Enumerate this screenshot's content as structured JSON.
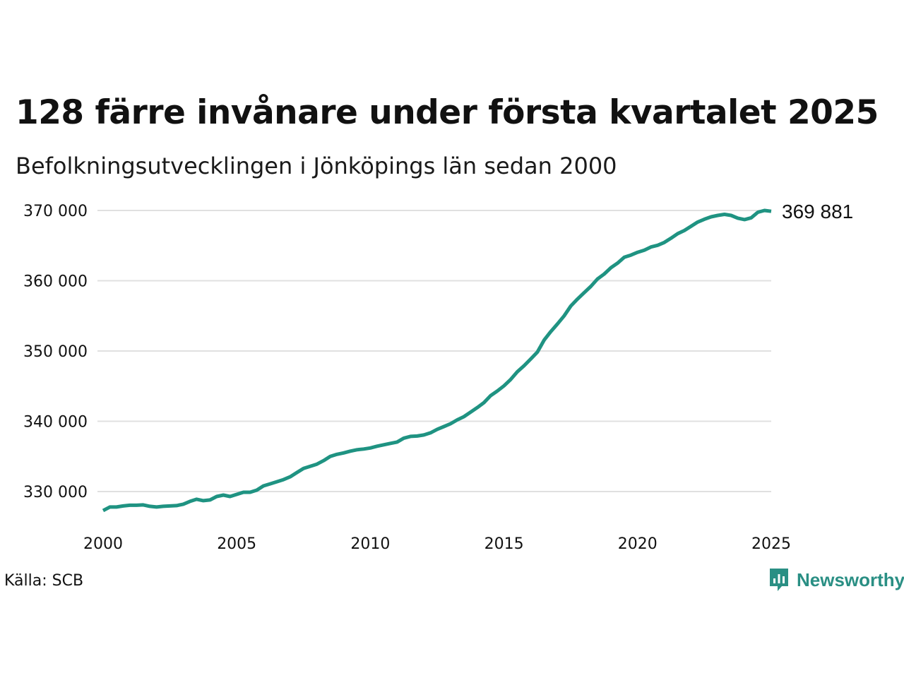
{
  "title": "128 färre invånare under första kvartalet 2025",
  "subtitle": "Befolkningsutvecklingen i Jönköpings län sedan 2000",
  "source": "Källa: SCB",
  "brand": {
    "name": "Newsworthy",
    "color": "#2a8f84",
    "icon": "newsworthy-logo-icon"
  },
  "colors": {
    "line": "#1f9382",
    "grid": "#e0e0e0",
    "text": "#111111"
  },
  "chart_data": {
    "type": "line",
    "title": "128 färre invånare under första kvartalet 2025",
    "subtitle": "Befolkningsutvecklingen i Jönköpings län sedan 2000",
    "xlabel": "",
    "ylabel": "",
    "xlim": [
      2000,
      2025
    ],
    "ylim": [
      325000,
      372000
    ],
    "x_ticks": [
      {
        "value": 2000,
        "label": "2000"
      },
      {
        "value": 2005,
        "label": "2005"
      },
      {
        "value": 2010,
        "label": "2010"
      },
      {
        "value": 2015,
        "label": "2015"
      },
      {
        "value": 2020,
        "label": "2020"
      },
      {
        "value": 2025,
        "label": "2025"
      }
    ],
    "y_ticks": [
      {
        "value": 330000,
        "label": "330 000"
      },
      {
        "value": 340000,
        "label": "340 000"
      },
      {
        "value": 350000,
        "label": "350 000"
      },
      {
        "value": 360000,
        "label": "360 000"
      },
      {
        "value": 370000,
        "label": "370 000"
      }
    ],
    "grid": true,
    "end_label": "369 881",
    "series": [
      {
        "x": [
          2000.0,
          2000.25,
          2000.5,
          2000.75,
          2001.0,
          2001.25,
          2001.5,
          2001.75,
          2002.0,
          2002.25,
          2002.5,
          2002.75,
          2003.0,
          2003.25,
          2003.5,
          2003.75,
          2004.0,
          2004.25,
          2004.5,
          2004.75,
          2005.0,
          2005.25,
          2005.5,
          2005.75,
          2006.0,
          2006.25,
          2006.5,
          2006.75,
          2007.0,
          2007.25,
          2007.5,
          2007.75,
          2008.0,
          2008.25,
          2008.5,
          2008.75,
          2009.0,
          2009.25,
          2009.5,
          2009.75,
          2010.0,
          2010.25,
          2010.5,
          2010.75,
          2011.0,
          2011.25,
          2011.5,
          2011.75,
          2012.0,
          2012.25,
          2012.5,
          2012.75,
          2013.0,
          2013.25,
          2013.5,
          2013.75,
          2014.0,
          2014.25,
          2014.5,
          2014.75,
          2015.0,
          2015.25,
          2015.5,
          2015.75,
          2016.0,
          2016.25,
          2016.5,
          2016.75,
          2017.0,
          2017.25,
          2017.5,
          2017.75,
          2018.0,
          2018.25,
          2018.5,
          2018.75,
          2019.0,
          2019.25,
          2019.5,
          2019.75,
          2020.0,
          2020.25,
          2020.5,
          2020.75,
          2021.0,
          2021.25,
          2021.5,
          2021.75,
          2022.0,
          2022.25,
          2022.5,
          2022.75,
          2023.0,
          2023.25,
          2023.5,
          2023.75,
          2024.0,
          2024.25,
          2024.5,
          2024.75,
          2025.0
        ],
        "values": [
          327300,
          327800,
          327800,
          327950,
          328050,
          328050,
          328100,
          327900,
          327800,
          327900,
          327950,
          328000,
          328200,
          328600,
          328900,
          328700,
          328800,
          329300,
          329500,
          329300,
          329600,
          329900,
          329900,
          330200,
          330800,
          331100,
          331400,
          331700,
          332100,
          332700,
          333300,
          333600,
          333900,
          334400,
          335000,
          335300,
          335500,
          335750,
          335950,
          336050,
          336200,
          336450,
          336650,
          336850,
          337050,
          337600,
          337850,
          337900,
          338050,
          338350,
          338850,
          339250,
          339650,
          340200,
          340650,
          341300,
          341950,
          342650,
          343650,
          344300,
          345050,
          345950,
          347050,
          347900,
          348850,
          349850,
          351550,
          352750,
          353850,
          355000,
          356400,
          357400,
          358300,
          359200,
          360250,
          360950,
          361850,
          362500,
          363350,
          363650,
          364050,
          364350,
          364800,
          365050,
          365450,
          366050,
          366700,
          367150,
          367750,
          368350,
          368750,
          369100,
          369300,
          369450,
          369300,
          368900,
          368700,
          368950,
          369750,
          370000,
          369881
        ]
      }
    ]
  }
}
